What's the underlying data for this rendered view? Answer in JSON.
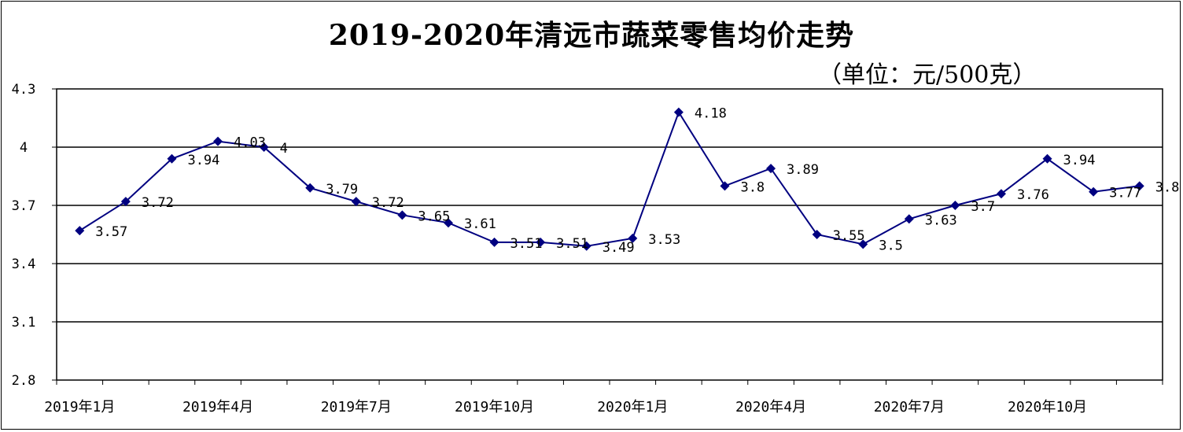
{
  "chart_data": {
    "type": "line",
    "title": "2019-2020年清远市蔬菜零售均价走势",
    "unit_label": "（单位：元/500克）",
    "xlabel": "",
    "ylabel": "",
    "ylim": [
      2.8,
      4.3
    ],
    "yticks": [
      4.3,
      4,
      3.7,
      3.4,
      3.1,
      2.8
    ],
    "ytick_labels": [
      "4.3",
      "4",
      "3.7",
      "3.4",
      "3.1",
      "2.8"
    ],
    "categories": [
      "2019年1月",
      "2019年2月",
      "2019年3月",
      "2019年4月",
      "2019年5月",
      "2019年6月",
      "2019年7月",
      "2019年8月",
      "2019年9月",
      "2019年10月",
      "2019年11月",
      "2019年12月",
      "2020年1月",
      "2020年2月",
      "2020年3月",
      "2020年4月",
      "2020年5月",
      "2020年6月",
      "2020年7月",
      "2020年8月",
      "2020年9月",
      "2020年10月",
      "2020年11月",
      "2020年12月"
    ],
    "xtick_labels": [
      "2019年1月",
      "2019年4月",
      "2019年7月",
      "2019年10月",
      "2020年1月",
      "2020年4月",
      "2020年7月",
      "2020年10月"
    ],
    "values": [
      3.57,
      3.72,
      3.94,
      4.03,
      4,
      3.79,
      3.72,
      3.65,
      3.61,
      3.51,
      3.51,
      3.49,
      3.53,
      4.18,
      3.8,
      3.89,
      3.55,
      3.5,
      3.63,
      3.7,
      3.76,
      3.94,
      3.77,
      3.8
    ],
    "data_labels": [
      "3.57",
      "3.72",
      "3.94",
      "4.03",
      "4",
      "3.79",
      "3.72",
      "3.65",
      "3.61",
      "3.51",
      "3.51",
      "3.49",
      "3.53",
      "4.18",
      "3.8",
      "3.89",
      "3.55",
      "3.5",
      "3.63",
      "3.7",
      "3.76",
      "3.94",
      "3.77",
      "3.8"
    ],
    "grid": true,
    "line_color": "#000080",
    "marker": "diamond",
    "legend": "none"
  }
}
